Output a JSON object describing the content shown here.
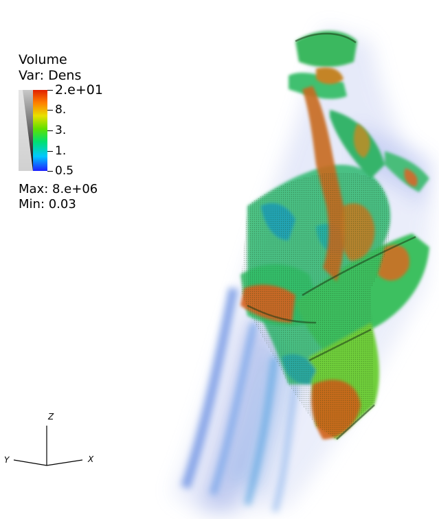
{
  "legend": {
    "title": "Volume",
    "variable": "Var: Dens",
    "ticks": [
      "2.e+01",
      "8.",
      "3.",
      "1.",
      "0.5"
    ],
    "max": "Max:  8.e+06",
    "min": "Min:  0.03",
    "colormap": [
      "#1f1fff",
      "#00c8ff",
      "#00e070",
      "#60e000",
      "#e8e000",
      "#ff8000",
      "#e02000"
    ]
  },
  "axes": {
    "x": "X",
    "y": "Y",
    "z": "Z"
  }
}
